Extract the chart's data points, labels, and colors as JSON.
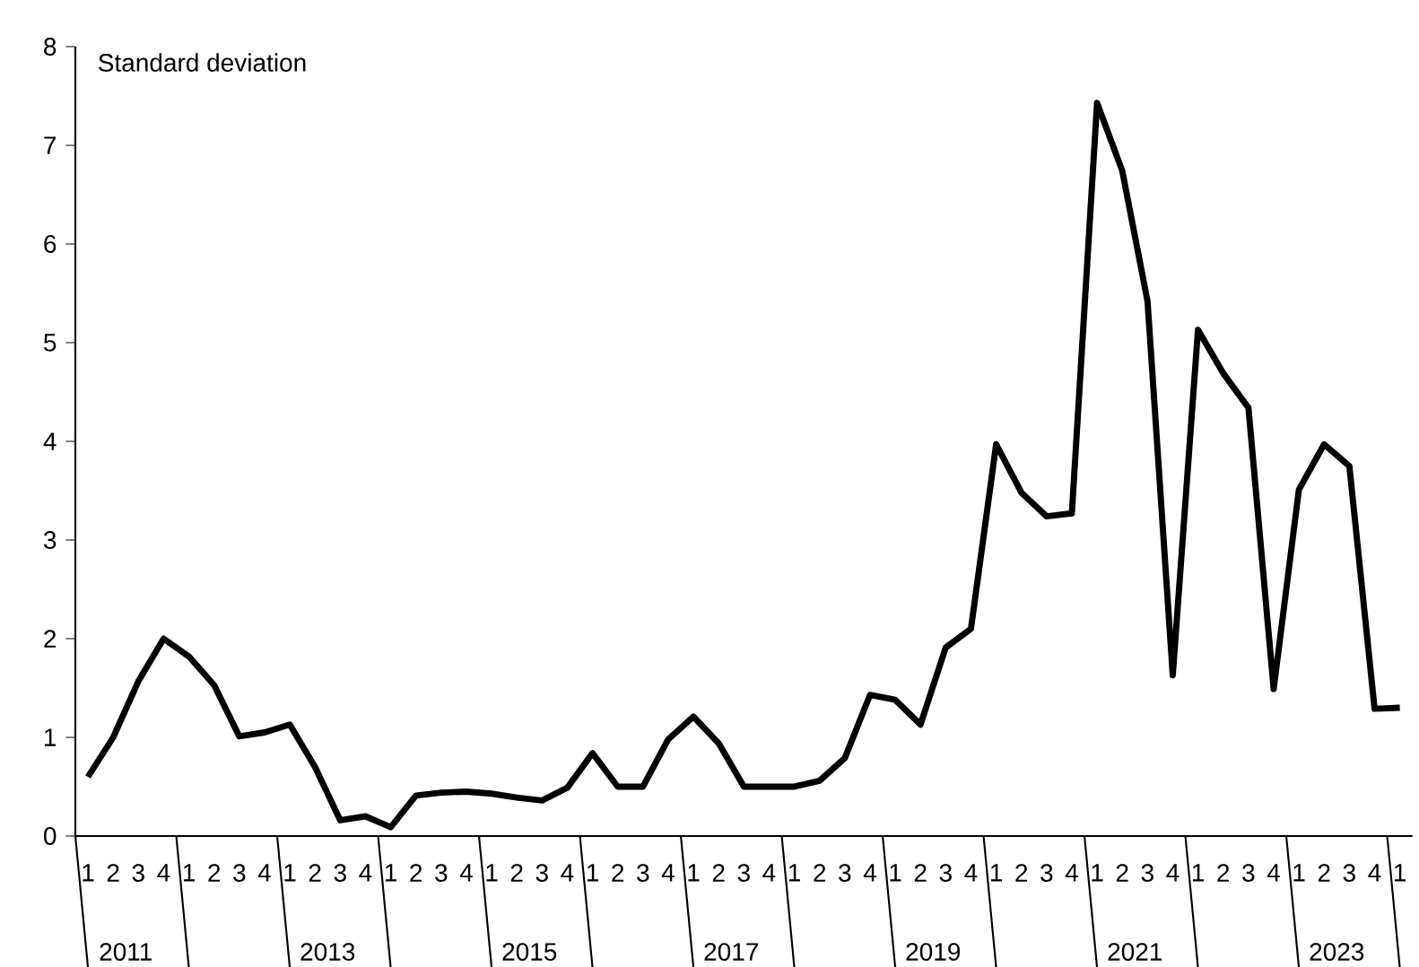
{
  "chart_data": {
    "type": "line",
    "ylabel": "Standard deviation",
    "categories": [
      "1",
      "2",
      "3",
      "4",
      "1",
      "2",
      "3",
      "4",
      "1",
      "2",
      "3",
      "4",
      "1",
      "2",
      "3",
      "4",
      "1",
      "2",
      "3",
      "4",
      "1",
      "2",
      "3",
      "4",
      "1",
      "2",
      "3",
      "4",
      "1",
      "2",
      "3",
      "4",
      "1",
      "2",
      "3",
      "4",
      "1",
      "2",
      "3",
      "4",
      "1",
      "2",
      "3",
      "4",
      "1",
      "2",
      "3",
      "4",
      "1",
      "2",
      "3",
      "4",
      "1"
    ],
    "values": [
      0.6,
      1.0,
      1.57,
      2.0,
      1.82,
      1.53,
      1.01,
      1.05,
      1.13,
      0.7,
      0.16,
      0.2,
      0.09,
      0.41,
      0.44,
      0.45,
      0.43,
      0.39,
      0.36,
      0.49,
      0.84,
      0.5,
      0.5,
      0.98,
      1.21,
      0.94,
      0.5,
      0.5,
      0.5,
      0.56,
      0.79,
      1.43,
      1.38,
      1.13,
      1.91,
      2.1,
      3.97,
      3.48,
      3.24,
      3.27,
      7.43,
      6.74,
      5.42,
      1.63,
      5.13,
      4.69,
      4.34,
      1.49,
      3.51,
      3.97,
      3.75,
      1.29,
      1.3
    ],
    "color": "#000000",
    "ylim": [
      0,
      8
    ],
    "yticks": [
      0,
      1,
      2,
      3,
      4,
      5,
      6,
      7,
      8
    ],
    "grid": false,
    "marker": "none",
    "line_style": "solid",
    "annotations": [
      "2011",
      "2013",
      "2015",
      "2017",
      "2019",
      "2021",
      "2023"
    ]
  }
}
